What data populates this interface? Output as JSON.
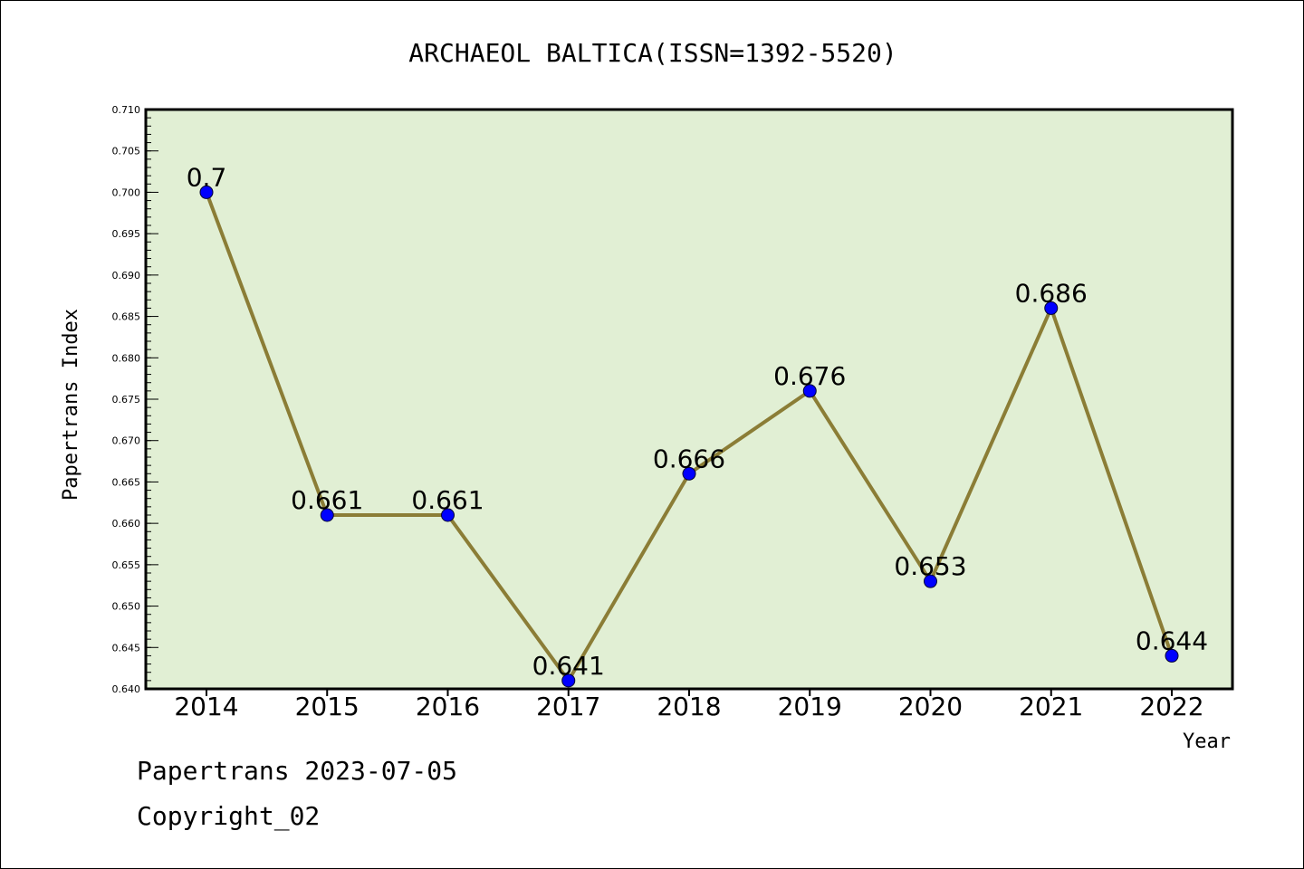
{
  "chart_data": {
    "type": "line",
    "title": "ARCHAEOL BALTICA(ISSN=1392-5520)",
    "xlabel": "Year",
    "ylabel": "Papertrans Index",
    "x": [
      "2014",
      "2015",
      "2016",
      "2017",
      "2018",
      "2019",
      "2020",
      "2021",
      "2022"
    ],
    "series": [
      {
        "values": [
          0.7,
          0.661,
          0.661,
          0.641,
          0.666,
          0.676,
          0.653,
          0.686,
          0.644
        ],
        "data_labels": [
          "0.7",
          "0.661",
          "0.661",
          "0.641",
          "0.666",
          "0.676",
          "0.653",
          "0.686",
          "0.644"
        ]
      }
    ],
    "ylim": [
      0.64,
      0.71
    ],
    "yticks": [
      "0.640",
      "0.645",
      "0.650",
      "0.655",
      "0.660",
      "0.665",
      "0.670",
      "0.675",
      "0.680",
      "0.685",
      "0.690",
      "0.695",
      "0.700",
      "0.705",
      "0.710"
    ],
    "grid": false,
    "legend": "none",
    "colors": {
      "plot_background": "#e1efd4",
      "line": "#8b7d36",
      "marker": "#0000ff",
      "axis": "#000000"
    }
  },
  "footer": {
    "line1": "Papertrans 2023-07-05",
    "line2": "Copyright_02"
  }
}
